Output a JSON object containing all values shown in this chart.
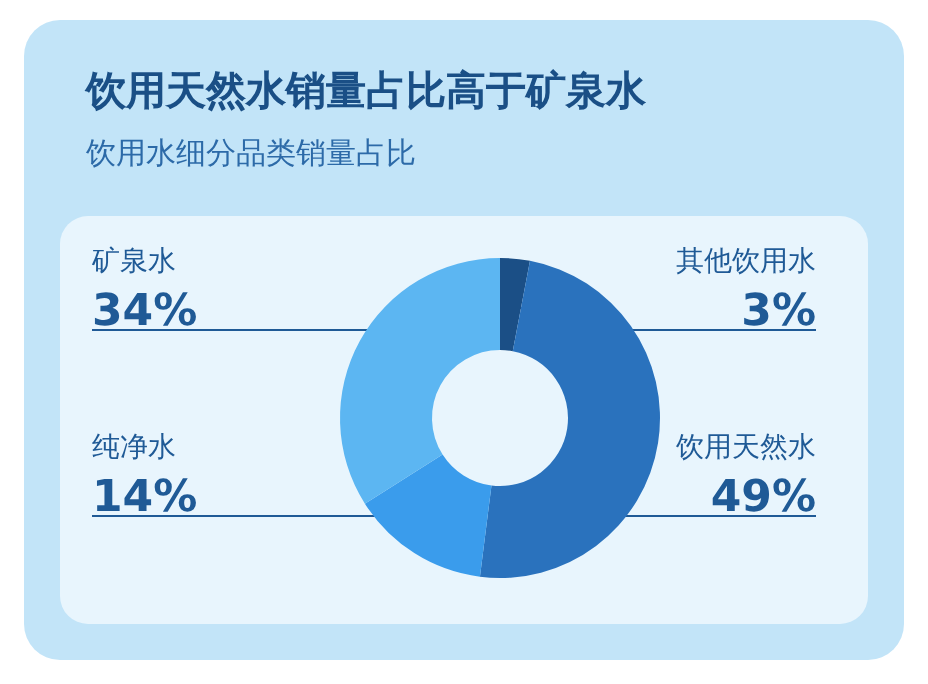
{
  "chart_data": {
    "type": "donut",
    "title": "饮用天然水销量占比高于矿泉水",
    "subtitle": "饮用水细分品类销量占比",
    "categories": [
      "其他饮用水",
      "饮用天然水",
      "纯净水",
      "矿泉水"
    ],
    "values": [
      3,
      49,
      14,
      34
    ],
    "value_labels": [
      "3%",
      "49%",
      "14%",
      "34%"
    ],
    "colors": [
      "#1b4f86",
      "#2a72bd",
      "#3a9cec",
      "#5cb6f2"
    ]
  }
}
